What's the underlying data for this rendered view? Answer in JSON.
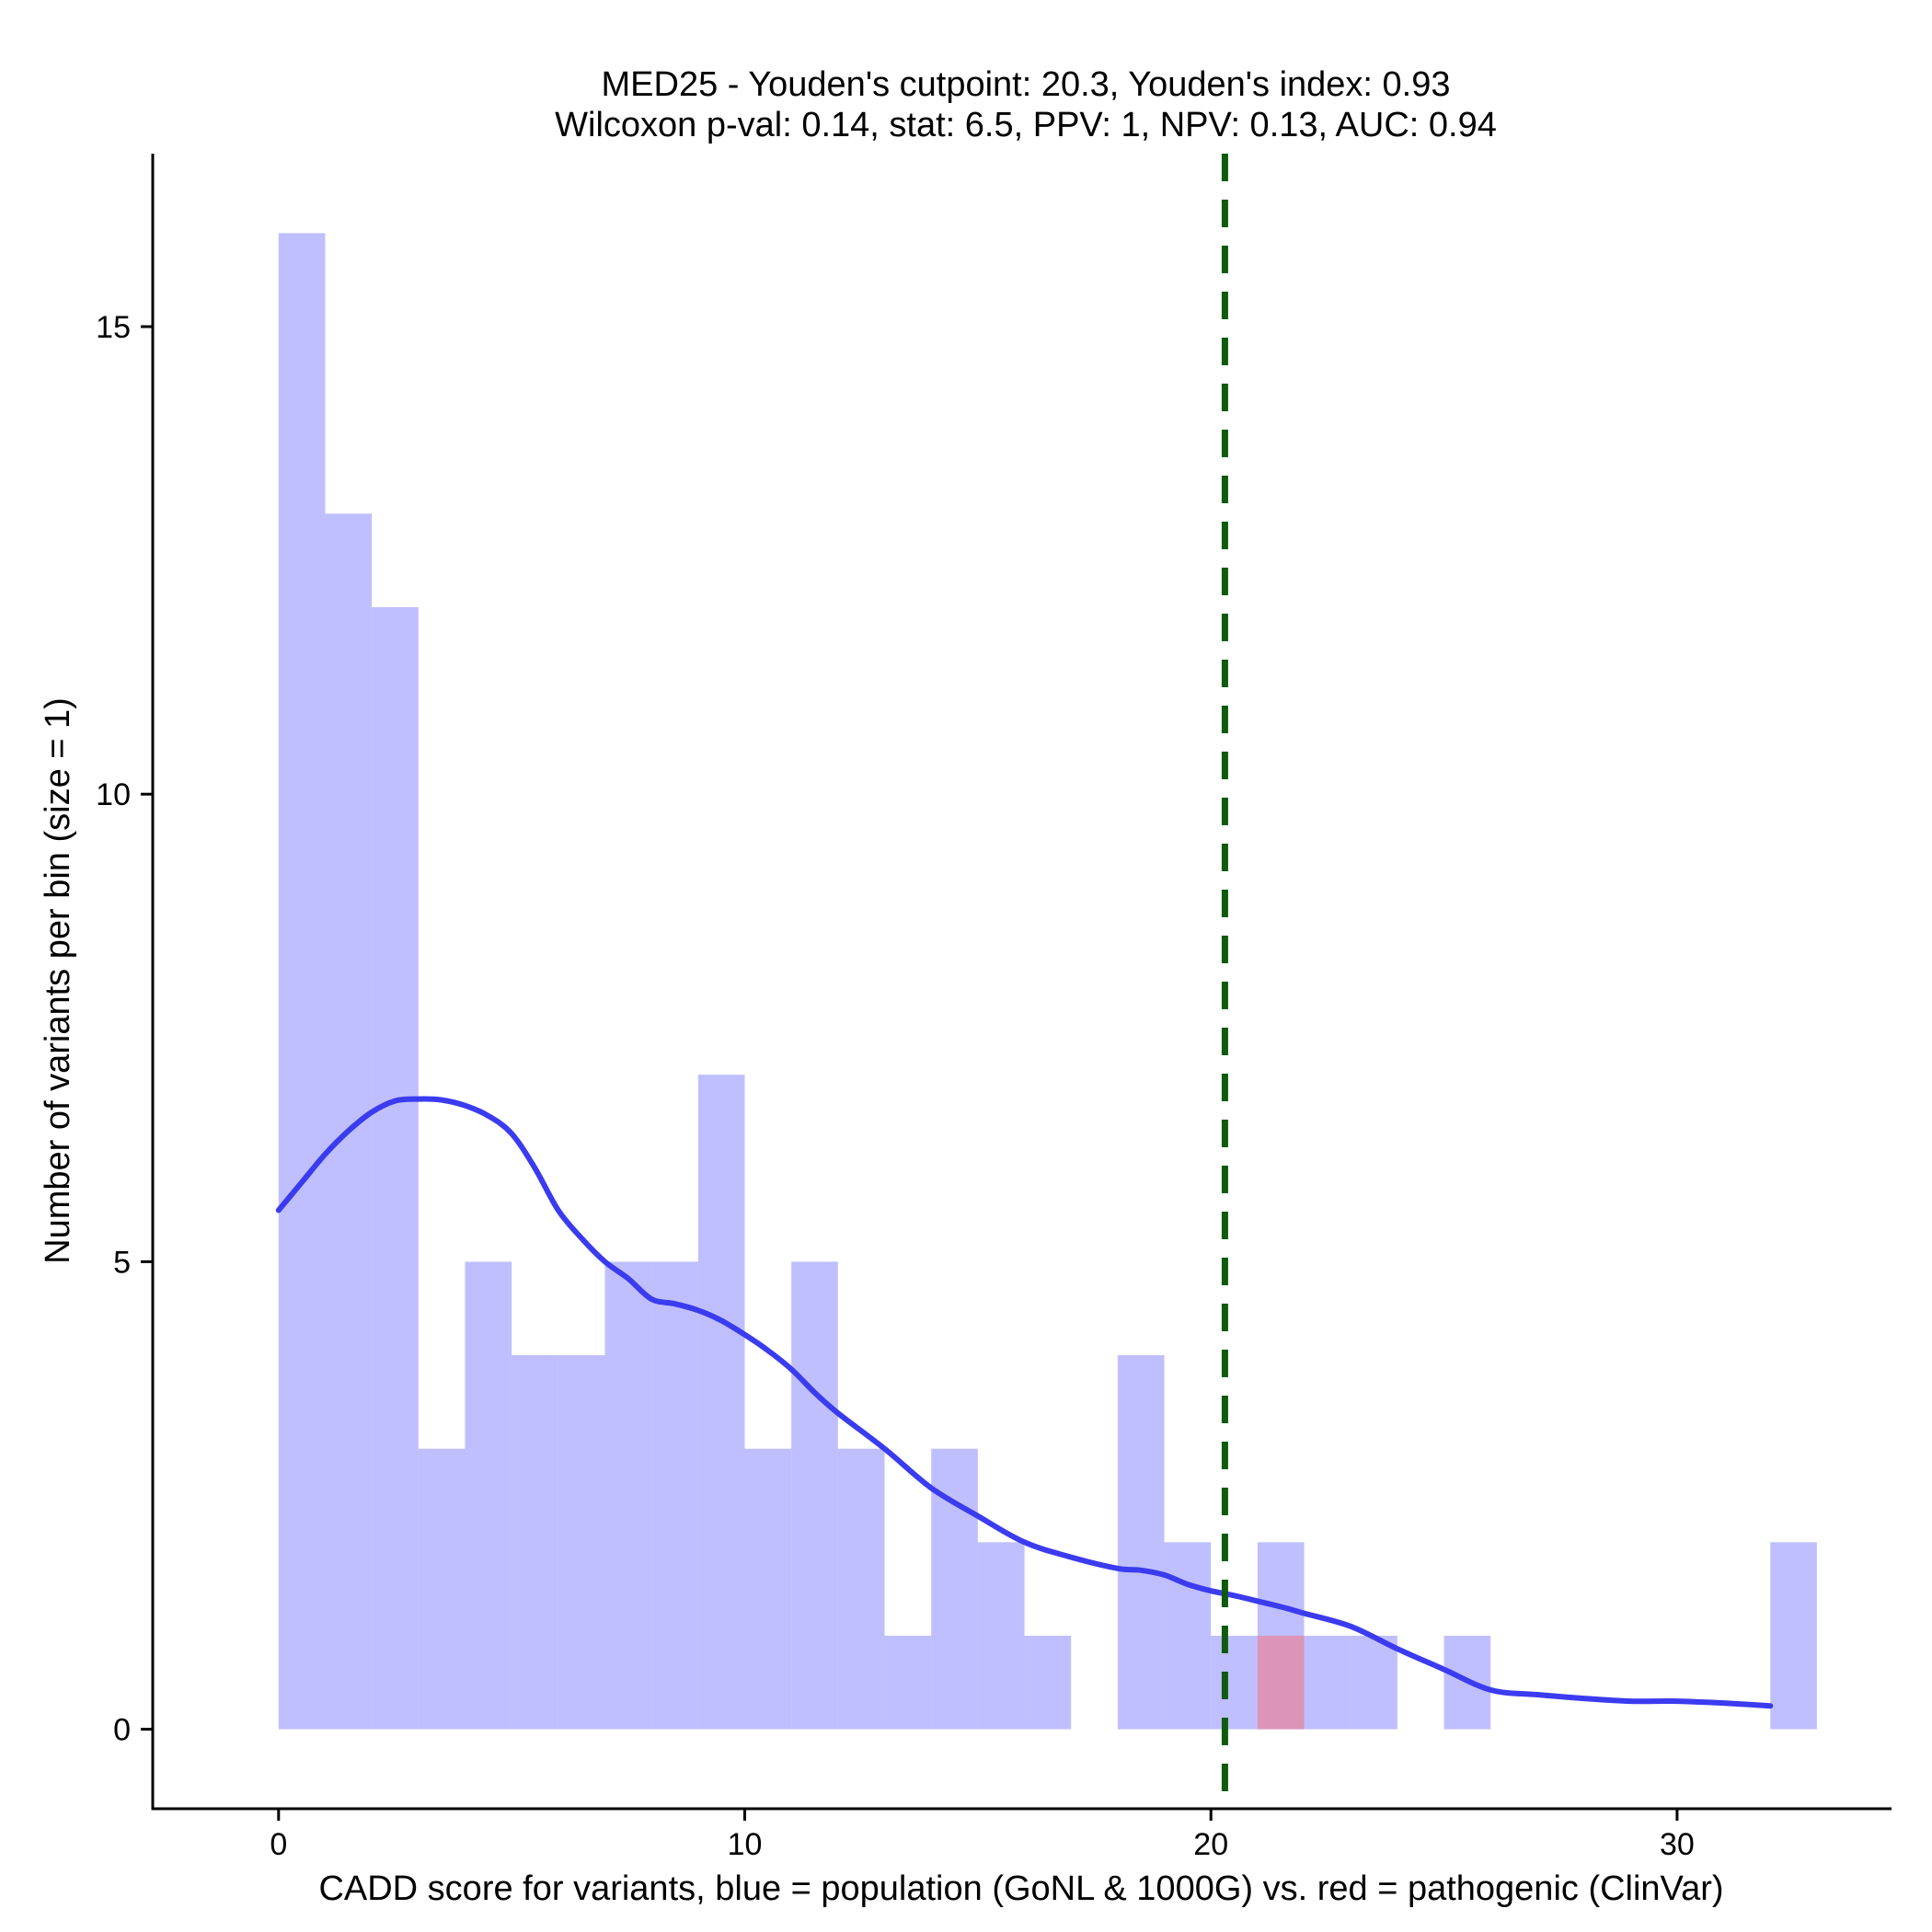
{
  "chart_data": {
    "type": "histogram",
    "title_line1": "MED25 - Youden's cutpoint: 20.3, Youden's index: 0.93",
    "title_line2": "Wilcoxon p-val: 0.14, stat: 6.5, PPV: 1, NPV: 0.13, AUC: 0.94",
    "xlabel": "CADD score for variants, blue = population (GoNL & 1000G) vs. red = pathogenic (ClinVar)",
    "ylabel": "Number of variants per bin (size = 1)",
    "xlim": [
      -2.7,
      34.6
    ],
    "ylim": [
      -0.85,
      16.85
    ],
    "x_ticks": [
      0,
      10,
      20,
      30
    ],
    "x_tick_labels": [
      "0",
      "10",
      "20",
      "30"
    ],
    "y_ticks": [
      0,
      5,
      10,
      15
    ],
    "y_tick_labels": [
      "0",
      "5",
      "10",
      "15"
    ],
    "bin_width": 1,
    "series": [
      {
        "name": "population (GoNL & 1000G)",
        "color": "#8080ff",
        "opacity": 0.5,
        "bins": [
          {
            "start": 0,
            "count": 16
          },
          {
            "start": 1,
            "count": 13
          },
          {
            "start": 2,
            "count": 12
          },
          {
            "start": 3,
            "count": 3
          },
          {
            "start": 4,
            "count": 5
          },
          {
            "start": 5,
            "count": 4
          },
          {
            "start": 6,
            "count": 4
          },
          {
            "start": 7,
            "count": 5
          },
          {
            "start": 8,
            "count": 5
          },
          {
            "start": 9,
            "count": 7
          },
          {
            "start": 10,
            "count": 3
          },
          {
            "start": 11,
            "count": 5
          },
          {
            "start": 12,
            "count": 3
          },
          {
            "start": 13,
            "count": 1
          },
          {
            "start": 14,
            "count": 3
          },
          {
            "start": 15,
            "count": 2
          },
          {
            "start": 16,
            "count": 1
          },
          {
            "start": 17,
            "count": 0
          },
          {
            "start": 18,
            "count": 4
          },
          {
            "start": 19,
            "count": 2
          },
          {
            "start": 20,
            "count": 1
          },
          {
            "start": 21,
            "count": 2
          },
          {
            "start": 22,
            "count": 1
          },
          {
            "start": 23,
            "count": 1
          },
          {
            "start": 24,
            "count": 0
          },
          {
            "start": 25,
            "count": 1
          },
          {
            "start": 26,
            "count": 0
          },
          {
            "start": 27,
            "count": 0
          },
          {
            "start": 28,
            "count": 0
          },
          {
            "start": 29,
            "count": 0
          },
          {
            "start": 30,
            "count": 0
          },
          {
            "start": 31,
            "count": 0
          },
          {
            "start": 32,
            "count": 2
          }
        ]
      },
      {
        "name": "pathogenic (ClinVar)",
        "color": "#ff6060",
        "opacity": 0.45,
        "bins": [
          {
            "start": 21,
            "count": 1
          }
        ]
      }
    ],
    "density_curve": {
      "name": "population density",
      "color": "#3b3bf0",
      "x": [
        0,
        0.5,
        1,
        1.5,
        2,
        2.5,
        3,
        3.5,
        4,
        4.5,
        5,
        5.5,
        6,
        6.5,
        7,
        7.5,
        8,
        8.5,
        9,
        9.5,
        10,
        10.5,
        11,
        11.5,
        12,
        13,
        14,
        15,
        16,
        17,
        18,
        18.5,
        19,
        19.5,
        20,
        20.5,
        21,
        21.5,
        22,
        23,
        24,
        25,
        26,
        27,
        28,
        29,
        30,
        31,
        32
      ],
      "y": [
        5.55,
        5.85,
        6.15,
        6.4,
        6.6,
        6.72,
        6.74,
        6.73,
        6.67,
        6.56,
        6.37,
        6.0,
        5.55,
        5.25,
        5.0,
        4.82,
        4.6,
        4.55,
        4.48,
        4.37,
        4.22,
        4.05,
        3.85,
        3.6,
        3.38,
        3.0,
        2.58,
        2.28,
        2.0,
        1.84,
        1.72,
        1.7,
        1.65,
        1.55,
        1.48,
        1.43,
        1.37,
        1.31,
        1.24,
        1.1,
        0.86,
        0.64,
        0.42,
        0.37,
        0.33,
        0.3,
        0.3,
        0.28,
        0.25
      ]
    },
    "cutpoint": {
      "label": "Youden's cutpoint",
      "x": 20.3,
      "color": "#0f5a0f",
      "style": "dashed"
    }
  }
}
